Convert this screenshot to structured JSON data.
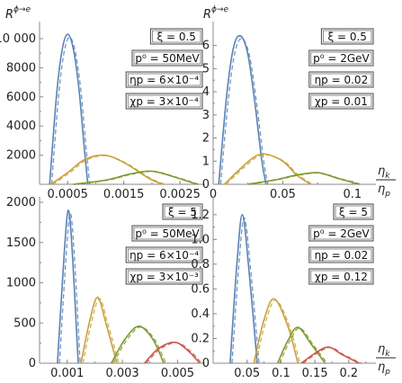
{
  "figure": {
    "ylabel": "R",
    "ylabel_sup": "ϕ→e",
    "xlabel_num": "η",
    "xlabel_num_sub": "k",
    "xlabel_den": "η",
    "xlabel_den_sub": "p"
  },
  "colors": {
    "series1": "#5b82b5",
    "series2": "#c9a13a",
    "series3": "#7a9a2c",
    "series4": "#c9574a",
    "axis": "#888888",
    "box": "#444444"
  },
  "chart_data": [
    {
      "type": "line",
      "panel": "top-left",
      "xlim": [
        0,
        0.00285
      ],
      "ylim": [
        0,
        10800
      ],
      "xticks": [
        0.0005,
        0.0015,
        0.0025
      ],
      "xtick_labels": [
        "0.0005",
        "0.0015",
        "0.0025"
      ],
      "yticks": [
        2000,
        4000,
        6000,
        8000,
        10000
      ],
      "ytick_labels": [
        "2000",
        "4000",
        "6000",
        "8000",
        "10 000"
      ],
      "params": [
        "ξ = 0.5",
        "p⁰ = 50MeV",
        "ηp = 6×10⁻⁴",
        "χp = 3×10⁻⁴"
      ],
      "series": [
        {
          "x": [
            0.00018,
            0.0003,
            0.0004,
            0.0005,
            0.0006,
            0.0007,
            0.0008,
            0.00086
          ],
          "values": [
            0,
            6000,
            9200,
            10300,
            9300,
            6600,
            2300,
            0
          ]
        },
        {
          "x": [
            0.0002,
            0.0005,
            0.0008,
            0.00115,
            0.0015,
            0.00195,
            0.0022
          ],
          "values": [
            0,
            800,
            1700,
            2000,
            1500,
            400,
            0
          ]
        },
        {
          "x": [
            0.0006,
            0.0012,
            0.0016,
            0.002,
            0.0024,
            0.0028
          ],
          "values": [
            0,
            300,
            700,
            900,
            500,
            0
          ]
        }
      ]
    },
    {
      "type": "line",
      "panel": "top-right",
      "xlim": [
        0,
        0.113
      ],
      "ylim": [
        0,
        6.8
      ],
      "xticks": [
        0,
        0.05,
        0.1
      ],
      "xtick_labels": [
        "0",
        "0.05",
        "0.1"
      ],
      "yticks": [
        0,
        1,
        2,
        3,
        4,
        5,
        6
      ],
      "ytick_labels": [
        "0",
        "1",
        "2",
        "3",
        "4",
        "5",
        "6"
      ],
      "params": [
        "ξ = 0.5",
        "p⁰ = 2GeV",
        "ηp = 0.02",
        "χp = 0.01"
      ],
      "series": [
        {
          "x": [
            0.004,
            0.01,
            0.015,
            0.02,
            0.025,
            0.03,
            0.035,
            0.038
          ],
          "values": [
            0,
            4.0,
            6.0,
            6.4,
            5.6,
            3.5,
            1.0,
            0
          ]
        },
        {
          "x": [
            0.008,
            0.02,
            0.03,
            0.038,
            0.05,
            0.06,
            0.07
          ],
          "values": [
            0,
            0.7,
            1.2,
            1.3,
            1.0,
            0.4,
            0
          ]
        },
        {
          "x": [
            0.025,
            0.045,
            0.06,
            0.075,
            0.09,
            0.105
          ],
          "values": [
            0,
            0.2,
            0.4,
            0.5,
            0.25,
            0
          ]
        }
      ]
    },
    {
      "type": "line",
      "panel": "bottom-left",
      "xlim": [
        0,
        0.0058
      ],
      "ylim": [
        0,
        2000
      ],
      "xticks": [
        0.001,
        0.003,
        0.005
      ],
      "xtick_labels": [
        "0.001",
        "0.003",
        "0.005"
      ],
      "yticks": [
        0,
        500,
        1000,
        1500,
        2000
      ],
      "ytick_labels": [
        "0",
        "500",
        "1000",
        "1500",
        "2000"
      ],
      "params": [
        "ξ = 5",
        "p⁰ = 50MeV",
        "ηp = 6×10⁻⁴",
        "χp = 3×10⁻³"
      ],
      "series": [
        {
          "x": [
            0.00065,
            0.0009,
            0.00105,
            0.0012,
            0.0014
          ],
          "values": [
            0,
            1400,
            1900,
            1300,
            0
          ]
        },
        {
          "x": [
            0.0015,
            0.0018,
            0.0021,
            0.0024,
            0.0028
          ],
          "values": [
            0,
            500,
            820,
            500,
            0
          ]
        },
        {
          "x": [
            0.0026,
            0.0031,
            0.0036,
            0.0041,
            0.0045
          ],
          "values": [
            0,
            300,
            460,
            300,
            0
          ]
        },
        {
          "x": [
            0.0038,
            0.0043,
            0.0049,
            0.0054,
            0.0058
          ],
          "values": [
            0,
            180,
            260,
            150,
            0
          ]
        }
      ]
    },
    {
      "type": "line",
      "panel": "bottom-right",
      "xlim": [
        0,
        0.232
      ],
      "ylim": [
        0,
        1.3
      ],
      "xticks": [
        0.05,
        0.1,
        0.15,
        0.2
      ],
      "xtick_labels": [
        "0.05",
        "0.1",
        "0.15",
        "0.2"
      ],
      "yticks": [
        0,
        0.2,
        0.4,
        0.6,
        0.8,
        1.0,
        1.2
      ],
      "ytick_labels": [
        "0",
        "0.2",
        "0.4",
        "0.6",
        "0.8",
        "1.0",
        "1.2"
      ],
      "params": [
        "ξ = 5",
        "p⁰ = 2GeV",
        "ηp = 0.02",
        "χp = 0.12"
      ],
      "series": [
        {
          "x": [
            0.025,
            0.035,
            0.043,
            0.052,
            0.065
          ],
          "values": [
            0,
            0.8,
            1.2,
            0.8,
            0
          ]
        },
        {
          "x": [
            0.06,
            0.075,
            0.09,
            0.11,
            0.125
          ],
          "values": [
            0,
            0.35,
            0.52,
            0.3,
            0
          ]
        },
        {
          "x": [
            0.095,
            0.11,
            0.125,
            0.145,
            0.165
          ],
          "values": [
            0,
            0.18,
            0.29,
            0.15,
            0
          ]
        },
        {
          "x": [
            0.13,
            0.15,
            0.17,
            0.19,
            0.215
          ],
          "values": [
            0,
            0.08,
            0.13,
            0.07,
            0
          ]
        }
      ]
    }
  ]
}
